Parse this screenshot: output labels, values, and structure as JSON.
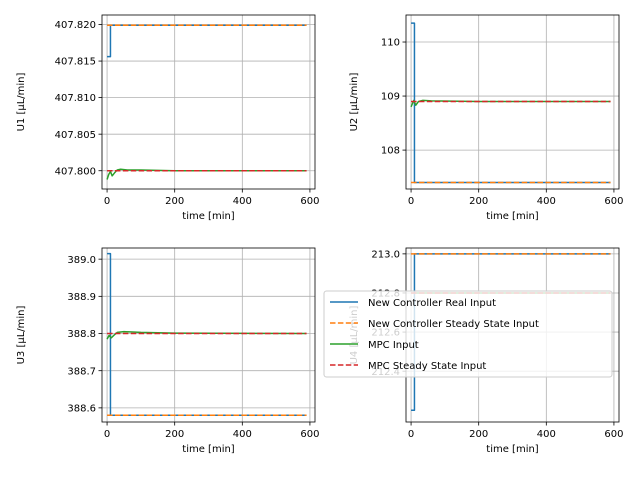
{
  "chart_data": [
    {
      "type": "line",
      "xlabel": "time [min]",
      "ylabel": "U1 [µL/min]",
      "xlim": [
        -15,
        615
      ],
      "ylim": [
        407.7975,
        407.8213
      ],
      "xticks": [
        0,
        200,
        400,
        600
      ],
      "xtick_labels": [
        "0",
        "200",
        "400",
        "600"
      ],
      "yticks": [
        407.8,
        407.805,
        407.81,
        407.815,
        407.82
      ],
      "ytick_labels": [
        "407.800",
        "407.805",
        "407.810",
        "407.815",
        "407.820"
      ],
      "grid": true,
      "series": [
        {
          "name": "New Controller Real Input",
          "color": "#1f77b4",
          "dash": "solid",
          "step": true,
          "points": [
            [
              0,
              407.8156
            ],
            [
              10,
              407.8156
            ],
            [
              10,
              407.8199
            ],
            [
              590,
              407.8199
            ]
          ]
        },
        {
          "name": "New Controller Steady State Input",
          "color": "#ff7f0e",
          "dash": "dashed",
          "step": false,
          "points": [
            [
              0,
              407.8199
            ],
            [
              590,
              407.8199
            ]
          ]
        },
        {
          "name": "MPC Input",
          "color": "#2ca02c",
          "dash": "solid",
          "step": false,
          "points": [
            [
              0,
              407.7988
            ],
            [
              5,
              407.7995
            ],
            [
              10,
              407.7999
            ],
            [
              15,
              407.7993
            ],
            [
              22,
              407.7997
            ],
            [
              30,
              407.8001
            ],
            [
              40,
              407.8002
            ],
            [
              60,
              407.8001
            ],
            [
              100,
              407.8001
            ],
            [
              200,
              407.8
            ],
            [
              590,
              407.8
            ]
          ]
        },
        {
          "name": "MPC Steady State Input",
          "color": "#d62728",
          "dash": "dashed",
          "step": false,
          "points": [
            [
              0,
              407.8
            ],
            [
              590,
              407.8
            ]
          ]
        }
      ]
    },
    {
      "type": "line",
      "xlabel": "time [min]",
      "ylabel": "U2 [µL/min]",
      "xlim": [
        -15,
        615
      ],
      "ylim": [
        107.28,
        110.5
      ],
      "xticks": [
        0,
        200,
        400,
        600
      ],
      "xtick_labels": [
        "0",
        "200",
        "400",
        "600"
      ],
      "yticks": [
        108,
        109,
        110
      ],
      "ytick_labels": [
        "108",
        "109",
        "110"
      ],
      "grid": true,
      "series": [
        {
          "name": "New Controller Real Input",
          "color": "#1f77b4",
          "dash": "solid",
          "step": true,
          "points": [
            [
              0,
              110.35
            ],
            [
              10,
              110.35
            ],
            [
              10,
              107.4
            ],
            [
              590,
              107.4
            ]
          ]
        },
        {
          "name": "New Controller Steady State Input",
          "color": "#ff7f0e",
          "dash": "dashed",
          "step": false,
          "points": [
            [
              0,
              107.4
            ],
            [
              590,
              107.4
            ]
          ]
        },
        {
          "name": "MPC Input",
          "color": "#2ca02c",
          "dash": "solid",
          "step": false,
          "points": [
            [
              0,
              108.8
            ],
            [
              8,
              108.92
            ],
            [
              14,
              108.83
            ],
            [
              22,
              108.9
            ],
            [
              35,
              108.92
            ],
            [
              60,
              108.91
            ],
            [
              200,
              108.9
            ],
            [
              590,
              108.9
            ]
          ]
        },
        {
          "name": "MPC Steady State Input",
          "color": "#d62728",
          "dash": "dashed",
          "step": false,
          "points": [
            [
              0,
              108.9
            ],
            [
              590,
              108.9
            ]
          ]
        }
      ]
    },
    {
      "type": "line",
      "xlabel": "time [min]",
      "ylabel": "U3 [µL/min]",
      "xlim": [
        -15,
        615
      ],
      "ylim": [
        388.562,
        389.03
      ],
      "xticks": [
        0,
        200,
        400,
        600
      ],
      "xtick_labels": [
        "0",
        "200",
        "400",
        "600"
      ],
      "yticks": [
        388.6,
        388.7,
        388.8,
        388.9,
        389.0
      ],
      "ytick_labels": [
        "388.6",
        "388.7",
        "388.8",
        "388.9",
        "389.0"
      ],
      "grid": true,
      "series": [
        {
          "name": "New Controller Real Input",
          "color": "#1f77b4",
          "dash": "solid",
          "step": true,
          "points": [
            [
              0,
              389.015
            ],
            [
              10,
              389.015
            ],
            [
              10,
              388.58
            ],
            [
              590,
              388.58
            ]
          ]
        },
        {
          "name": "New Controller Steady State Input",
          "color": "#ff7f0e",
          "dash": "dashed",
          "step": false,
          "points": [
            [
              0,
              388.58
            ],
            [
              590,
              388.58
            ]
          ]
        },
        {
          "name": "MPC Input",
          "color": "#2ca02c",
          "dash": "solid",
          "step": false,
          "points": [
            [
              0,
              388.785
            ],
            [
              6,
              388.795
            ],
            [
              12,
              388.788
            ],
            [
              20,
              388.795
            ],
            [
              30,
              388.803
            ],
            [
              50,
              388.805
            ],
            [
              100,
              388.803
            ],
            [
              200,
              388.801
            ],
            [
              590,
              388.8
            ]
          ]
        },
        {
          "name": "MPC Steady State Input",
          "color": "#d62728",
          "dash": "dashed",
          "step": false,
          "points": [
            [
              0,
              388.8
            ],
            [
              590,
              388.8
            ]
          ]
        }
      ]
    },
    {
      "type": "line",
      "xlabel": "time [min]",
      "ylabel": "U4 [µL/min]",
      "xlim": [
        -15,
        615
      ],
      "ylim": [
        212.14,
        213.03
      ],
      "xticks": [
        0,
        200,
        400,
        600
      ],
      "xtick_labels": [
        "0",
        "200",
        "400",
        "600"
      ],
      "yticks": [
        212.4,
        212.6,
        212.8,
        213.0
      ],
      "ytick_labels": [
        "212.4",
        "212.6",
        "212.8",
        "213.0"
      ],
      "grid": true,
      "series": [
        {
          "name": "New Controller Real Input",
          "color": "#1f77b4",
          "dash": "solid",
          "step": true,
          "points": [
            [
              0,
              212.2
            ],
            [
              10,
              212.2
            ],
            [
              10,
              213.0
            ],
            [
              590,
              213.0
            ]
          ]
        },
        {
          "name": "New Controller Steady State Input",
          "color": "#ff7f0e",
          "dash": "dashed",
          "step": false,
          "points": [
            [
              0,
              213.0
            ],
            [
              590,
              213.0
            ]
          ]
        },
        {
          "name": "MPC Input",
          "color": "#2ca02c",
          "dash": "solid",
          "step": false,
          "points": [
            [
              0,
              212.8
            ],
            [
              590,
              212.8
            ]
          ]
        },
        {
          "name": "MPC Steady State Input",
          "color": "#d62728",
          "dash": "dashed",
          "step": false,
          "points": [
            [
              0,
              212.8
            ],
            [
              590,
              212.8
            ]
          ]
        }
      ]
    }
  ],
  "legend": {
    "placement": "center",
    "entries": [
      {
        "label": "New Controller Real Input",
        "color": "#1f77b4",
        "dash": "solid"
      },
      {
        "label": "New Controller Steady State Input",
        "color": "#ff7f0e",
        "dash": "dashed"
      },
      {
        "label": "MPC Input",
        "color": "#2ca02c",
        "dash": "solid"
      },
      {
        "label": "MPC Steady State Input",
        "color": "#d62728",
        "dash": "dashed"
      }
    ]
  }
}
